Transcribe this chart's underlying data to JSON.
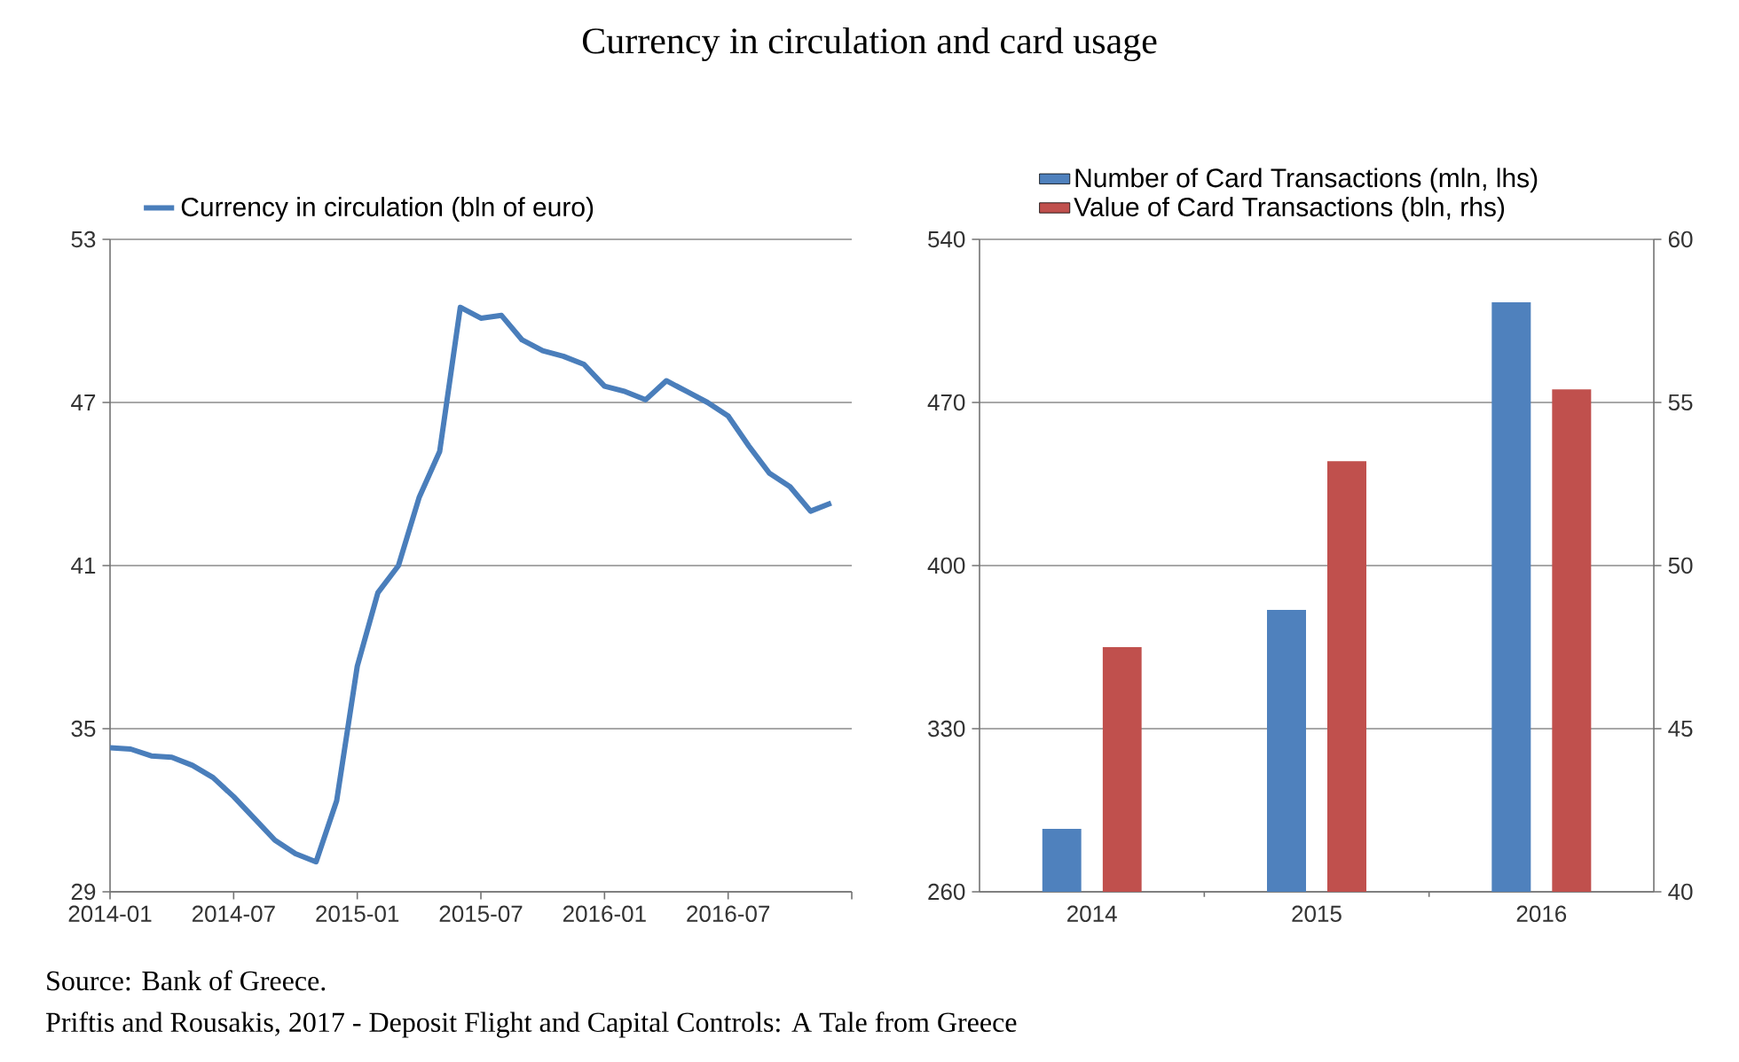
{
  "chart_data": [
    {
      "type": "line",
      "title": "Currency in circulation and card usage",
      "annotations": [
        "Source: Bank of Greece.",
        "Priftis and Rousakis, 2017 - Deposit Flight and Capital Controls: A Tale from Greece"
      ],
      "x": [
        "2014-01",
        "2014-02",
        "2014-03",
        "2014-04",
        "2014-05",
        "2014-06",
        "2014-07",
        "2014-08",
        "2014-09",
        "2014-10",
        "2014-11",
        "2014-12",
        "2015-01",
        "2015-02",
        "2015-03",
        "2015-04",
        "2015-05",
        "2015-06",
        "2015-07",
        "2015-08",
        "2015-09",
        "2015-10",
        "2015-11",
        "2015-12",
        "2016-01",
        "2016-02",
        "2016-03",
        "2016-04",
        "2016-05",
        "2016-06",
        "2016-07",
        "2016-08",
        "2016-09",
        "2016-10",
        "2016-11",
        "2016-12"
      ],
      "series": [
        {
          "name": "Currency in circulation (bln of euro)",
          "color": "#4a7ebb",
          "values": [
            34.3,
            34.25,
            34.0,
            33.95,
            33.65,
            33.2,
            32.5,
            31.7,
            30.9,
            30.4,
            30.1,
            32.35,
            37.3,
            40.0,
            41.0,
            43.5,
            45.2,
            50.5,
            50.1,
            50.2,
            49.3,
            48.9,
            48.7,
            48.4,
            47.6,
            47.4,
            47.1,
            47.8,
            47.4,
            47.0,
            46.5,
            45.4,
            44.4,
            43.9,
            43.0,
            43.3
          ]
        }
      ],
      "xlim": [
        "2014-01",
        "2017-01"
      ],
      "xticks": [
        "2014-01",
        "2014-07",
        "2015-01",
        "2015-07",
        "2016-01",
        "2016-07",
        {
          "value": "2017-01",
          "label": null
        }
      ],
      "ylim": [
        29,
        53
      ],
      "yticks": [
        29,
        35,
        41,
        47,
        53
      ],
      "grid": "y",
      "legend": "top"
    },
    {
      "type": "bar",
      "categories": [
        "2014",
        "2015",
        "2016"
      ],
      "series": [
        {
          "name": "Number of Card Transactions (mln, lhs)",
          "color": "#4f81bd",
          "values": [
            287,
            381,
            513
          ]
        },
        {
          "name": "Value of Card Transactions (bln, rhs)",
          "color": "#c0504d",
          "values": [
            47.5,
            53.2,
            55.4
          ],
          "axis": "y2"
        }
      ],
      "ylim": [
        260,
        540
      ],
      "yticks": [
        260,
        330,
        400,
        470,
        540
      ],
      "y2lim": [
        40,
        60
      ],
      "y2ticks": [
        40,
        45,
        50,
        55,
        60
      ],
      "grid": "y",
      "legend": "top left"
    }
  ]
}
